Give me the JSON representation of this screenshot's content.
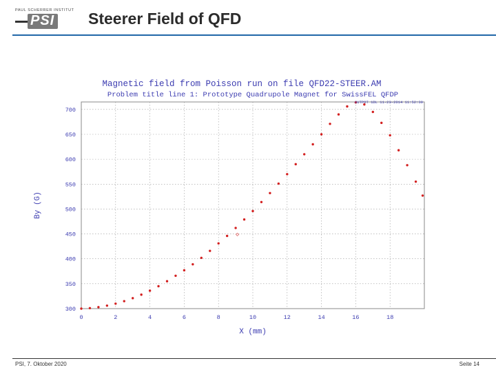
{
  "header": {
    "logo_top": "PAUL SCHERRER INSTITUT",
    "logo_text": "PSI",
    "title": "Steerer Field of QFD"
  },
  "footer": {
    "left": "PSI, 7. Oktober 2020",
    "right": "Seite 14"
  },
  "colors": {
    "accent": "#1f66a8",
    "plot_title": "#3b3bb0",
    "data": "#d32020"
  },
  "chart_data": {
    "type": "scatter",
    "title": "Magnetic field from Poisson run on file QFD22-STEER.AM",
    "subtitle": "Problem title line 1: Prototype Quadrupole Magnet for SwissFEL QFDP",
    "stamp": "OUTPOT 1DL   11-23-2014   11:52:30",
    "xlabel": "X (mm)",
    "ylabel": "By (G)",
    "xlim": [
      0,
      20
    ],
    "ylim": [
      300,
      715
    ],
    "xticks": [
      0,
      2,
      4,
      6,
      8,
      10,
      12,
      14,
      16,
      18
    ],
    "yticks": [
      300,
      350,
      400,
      450,
      500,
      550,
      600,
      650,
      700
    ],
    "grid": true,
    "series": [
      {
        "x": [
          0,
          0.5,
          1,
          1.5,
          2,
          2.5,
          3,
          3.5,
          4,
          4.5,
          5,
          5.5,
          6,
          6.5,
          7,
          7.5,
          8,
          8.5,
          9,
          9.5,
          10,
          10.5,
          11,
          11.5,
          12,
          12.5,
          13,
          13.5,
          14,
          14.5,
          15,
          15.5,
          16,
          16.5,
          17,
          17.5,
          18,
          18.5,
          19,
          19.5,
          19.9
        ],
        "y": [
          300,
          301,
          303,
          306,
          310,
          315,
          321,
          328,
          336,
          345,
          355,
          366,
          377,
          389,
          402,
          416,
          431,
          446,
          462,
          479,
          496,
          514,
          532,
          551,
          570,
          590,
          610,
          630,
          650,
          671,
          690,
          706,
          714,
          710,
          695,
          673,
          648,
          618,
          588,
          555,
          527
        ]
      }
    ],
    "annotation": {
      "x": 9.1,
      "y": 450,
      "text": "◇"
    }
  }
}
